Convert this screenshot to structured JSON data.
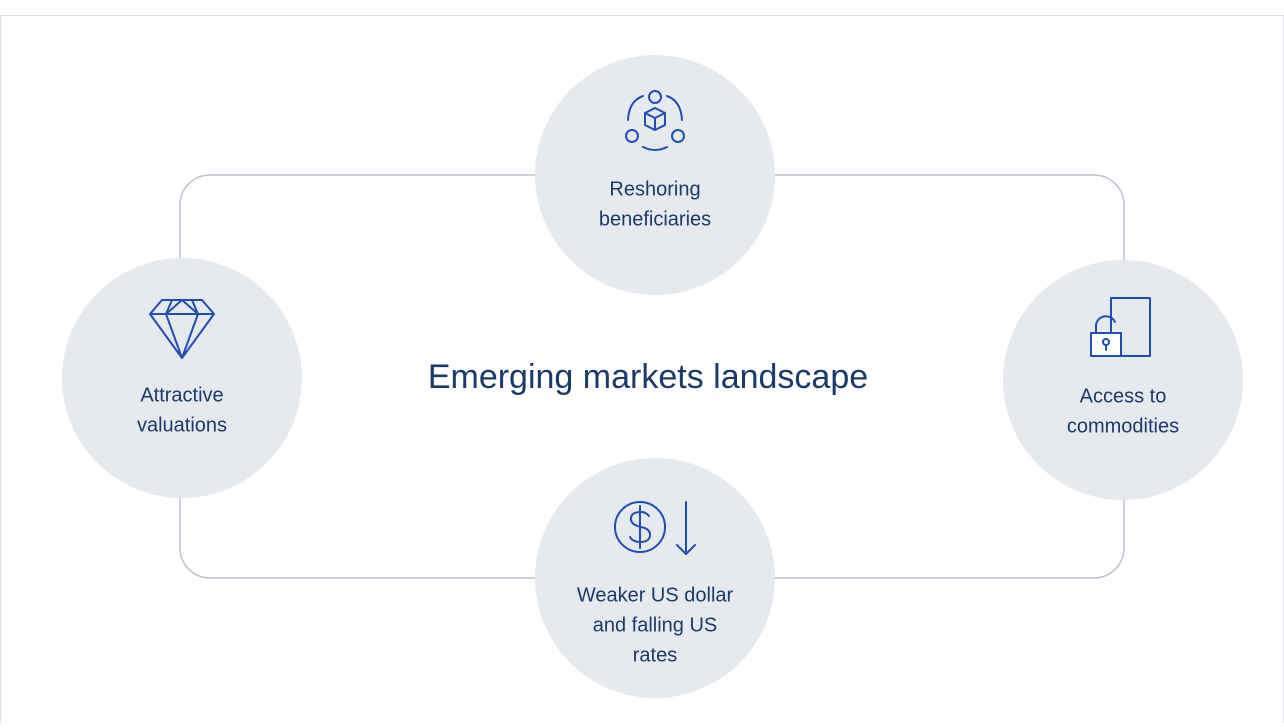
{
  "title": "Emerging markets landscape",
  "nodes": [
    {
      "label": [
        "Reshoring",
        "beneficiaries"
      ]
    },
    {
      "label": [
        "Attractive",
        "valuations"
      ]
    },
    {
      "label": [
        "Access to",
        "commodities"
      ]
    },
    {
      "label": [
        "Weaker US dollar",
        "and falling US",
        "rates"
      ]
    }
  ]
}
